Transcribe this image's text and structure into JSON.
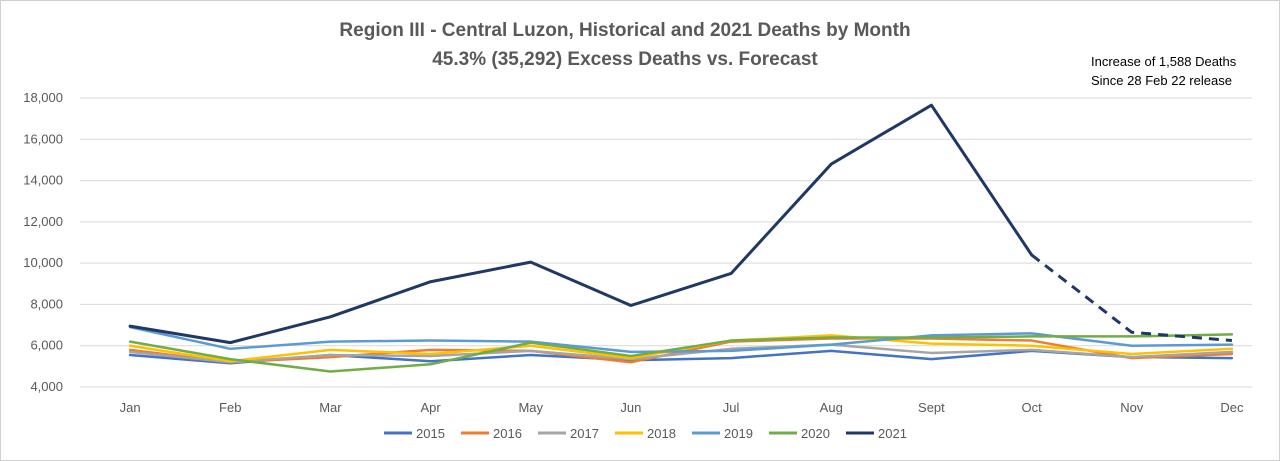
{
  "chart_data": {
    "type": "line",
    "title": "Region III - Central Luzon, Historical and 2021 Deaths by Month",
    "subtitle": "45.3% (35,292) Excess Deaths vs. Forecast",
    "annotation": [
      "Increase of 1,588 Deaths",
      "Since 28 Feb 22 release"
    ],
    "categories": [
      "Jan",
      "Feb",
      "Mar",
      "Apr",
      "May",
      "Jun",
      "Jul",
      "Aug",
      "Sept",
      "Oct",
      "Nov",
      "Dec"
    ],
    "ylim": [
      4000,
      18000
    ],
    "yticks": [
      4000,
      6000,
      8000,
      10000,
      12000,
      14000,
      16000,
      18000
    ],
    "ytick_labels": [
      "4,000",
      "6,000",
      "8,000",
      "10,000",
      "12,000",
      "14,000",
      "16,000",
      "18,000"
    ],
    "grid": true,
    "legend_position": "bottom",
    "series": [
      {
        "name": "2015",
        "color": "#4472c4",
        "values": [
          5550,
          5150,
          5550,
          5250,
          5550,
          5300,
          5400,
          5750,
          5350,
          5750,
          5450,
          5400
        ]
      },
      {
        "name": "2016",
        "color": "#ed7d31",
        "values": [
          5800,
          5200,
          5450,
          5800,
          5750,
          5200,
          6200,
          6350,
          6350,
          6250,
          5400,
          5600
        ]
      },
      {
        "name": "2017",
        "color": "#a5a5a5",
        "values": [
          5700,
          5200,
          5550,
          5500,
          5750,
          5350,
          5850,
          6050,
          5650,
          5800,
          5450,
          5700
        ]
      },
      {
        "name": "2018",
        "color": "#ffc000",
        "values": [
          6000,
          5250,
          5800,
          5600,
          6000,
          5400,
          6250,
          6500,
          6100,
          6000,
          5600,
          5850
        ]
      },
      {
        "name": "2019",
        "color": "#5b9bd5",
        "values": [
          6900,
          5850,
          6200,
          6250,
          6200,
          5700,
          5750,
          6050,
          6500,
          6600,
          6000,
          6050
        ]
      },
      {
        "name": "2020",
        "color": "#70ad47",
        "values": [
          6200,
          5350,
          4750,
          5100,
          6150,
          5500,
          6250,
          6400,
          6400,
          6450,
          6450,
          6550
        ]
      },
      {
        "name": "2021",
        "color": "#203864",
        "values": [
          6950,
          6150,
          7400,
          9100,
          10050,
          7950,
          9500,
          14800,
          17650,
          10400,
          6650,
          6250
        ],
        "dashed_from_index": 9
      }
    ]
  }
}
